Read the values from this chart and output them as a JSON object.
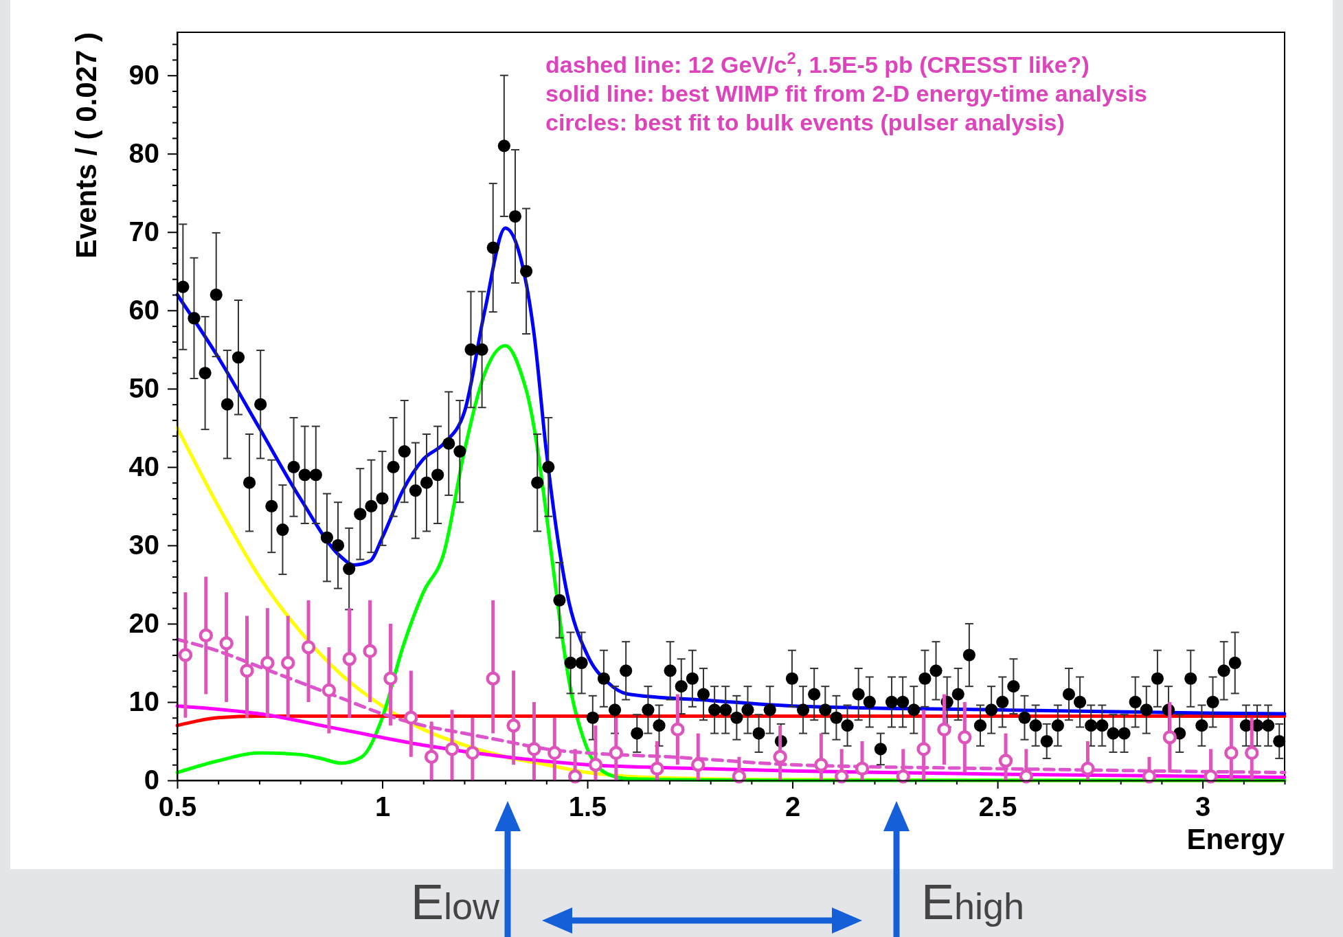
{
  "chart_data": {
    "type": "scatter",
    "ylabel": "Events / ( 0.027 )",
    "xlabel": "Energy",
    "xlim": [
      0.5,
      3.2
    ],
    "ylim": [
      0,
      95.5
    ],
    "xticks": [
      0.5,
      {
        "value": 0.6,
        "label": null
      },
      {
        "value": 0.7,
        "label": null
      },
      {
        "value": 0.8,
        "label": null
      },
      {
        "value": 0.9,
        "label": null
      },
      1,
      {
        "value": 1.1,
        "label": null
      },
      {
        "value": 1.2,
        "label": null
      },
      {
        "value": 1.3,
        "label": null
      },
      {
        "value": 1.4,
        "label": null
      },
      1.5,
      {
        "value": 1.6,
        "label": null
      },
      {
        "value": 1.7,
        "label": null
      },
      {
        "value": 1.8,
        "label": null
      },
      {
        "value": 1.9,
        "label": null
      },
      2,
      {
        "value": 2.1,
        "label": null
      },
      {
        "value": 2.2,
        "label": null
      },
      {
        "value": 2.3,
        "label": null
      },
      {
        "value": 2.4,
        "label": null
      },
      2.5,
      {
        "value": 2.6,
        "label": null
      },
      {
        "value": 2.7,
        "label": null
      },
      {
        "value": 2.8,
        "label": null
      },
      {
        "value": 2.9,
        "label": null
      },
      3,
      {
        "value": 3.1,
        "label": null
      },
      {
        "value": 3.2,
        "label": null
      }
    ],
    "yticks": [
      0,
      {
        "value": 2,
        "label": null
      },
      {
        "value": 4,
        "label": null
      },
      {
        "value": 6,
        "label": null
      },
      {
        "value": 8,
        "label": null
      },
      10,
      {
        "value": 12,
        "label": null
      },
      {
        "value": 14,
        "label": null
      },
      {
        "value": 16,
        "label": null
      },
      {
        "value": 18,
        "label": null
      },
      20,
      {
        "value": 22,
        "label": null
      },
      {
        "value": 24,
        "label": null
      },
      {
        "value": 26,
        "label": null
      },
      {
        "value": 28,
        "label": null
      },
      30,
      {
        "value": 32,
        "label": null
      },
      {
        "value": 34,
        "label": null
      },
      {
        "value": 36,
        "label": null
      },
      {
        "value": 38,
        "label": null
      },
      40,
      {
        "value": 42,
        "label": null
      },
      {
        "value": 44,
        "label": null
      },
      {
        "value": 46,
        "label": null
      },
      {
        "value": 48,
        "label": null
      },
      50,
      {
        "value": 52,
        "label": null
      },
      {
        "value": 54,
        "label": null
      },
      {
        "value": 56,
        "label": null
      },
      {
        "value": 58,
        "label": null
      },
      60,
      {
        "value": 62,
        "label": null
      },
      {
        "value": 64,
        "label": null
      },
      {
        "value": 66,
        "label": null
      },
      {
        "value": 68,
        "label": null
      },
      70,
      {
        "value": 72,
        "label": null
      },
      {
        "value": 74,
        "label": null
      },
      {
        "value": 76,
        "label": null
      },
      {
        "value": 78,
        "label": null
      },
      80,
      {
        "value": 82,
        "label": null
      },
      {
        "value": 84,
        "label": null
      },
      {
        "value": 86,
        "label": null
      },
      {
        "value": 88,
        "label": null
      },
      90,
      {
        "value": 92,
        "label": null
      },
      {
        "value": 94,
        "label": null
      }
    ],
    "grid": false,
    "annotations": [
      "dashed line: 12 GeV/c$^{2}$, 1.5E-5 pb (CRESST like?)",
      "solid line: best WIMP fit from 2-D energy-time analysis",
      "circles: best fit to bulk events (pulser analysis)",
      "E$_{low}$",
      "E$_{high}$"
    ],
    "series": [
      {
        "type": "line",
        "color": "#ffff00",
        "x": [
          0.5,
          0.6,
          0.7,
          0.8,
          0.9,
          1.0,
          1.1,
          1.2,
          1.3,
          1.4,
          1.5,
          1.6,
          1.8,
          2.0,
          2.5,
          3.2
        ],
        "values": [
          45,
          35,
          26,
          19,
          13.5,
          9.5,
          6.5,
          4.5,
          3,
          2,
          1,
          0.5,
          0.2,
          0.1,
          0,
          0
        ]
      },
      {
        "type": "line",
        "color": "#00ff00",
        "x": [
          0.5,
          0.6,
          0.7,
          0.8,
          0.85,
          0.9,
          0.95,
          1.0,
          1.05,
          1.1,
          1.15,
          1.2,
          1.25,
          1.3,
          1.35,
          1.47,
          1.5,
          1.55,
          1.6,
          2.0,
          3.2
        ],
        "values": [
          1,
          2.5,
          3.5,
          3.3,
          2.8,
          2.2,
          3,
          8,
          17,
          24,
          29,
          42,
          52,
          55.5,
          50,
          9,
          4,
          0.8,
          0.2,
          0,
          0
        ]
      },
      {
        "type": "line",
        "color": "#ff0000",
        "x": [
          0.5,
          0.55,
          0.6,
          0.7,
          1.0,
          2.0,
          3.2
        ],
        "values": [
          7,
          7.6,
          8,
          8.2,
          8.2,
          8.2,
          8.2
        ]
      },
      {
        "type": "line",
        "color": "#ff00ff",
        "x": [
          0.5,
          0.7,
          0.9,
          1.1,
          1.3,
          1.5,
          1.7,
          2.0,
          2.5,
          3.2
        ],
        "values": [
          9.5,
          8.5,
          6.5,
          4.5,
          3,
          2,
          1.6,
          1.2,
          0.8,
          0.4
        ]
      },
      {
        "type": "line",
        "color": "#dd55cc",
        "line_style": "dashed",
        "x": [
          0.5,
          0.6,
          0.7,
          0.8,
          0.9,
          1.0,
          1.1,
          1.2,
          1.3,
          1.4,
          1.5,
          1.7,
          2.0,
          2.5,
          3.2
        ],
        "values": [
          18,
          16.5,
          14.5,
          12.5,
          10.5,
          8.5,
          7,
          6,
          5,
          4,
          3.5,
          3,
          2,
          1.5,
          1
        ]
      },
      {
        "type": "line",
        "color": "#0000ff",
        "x": [
          0.5,
          0.6,
          0.7,
          0.8,
          0.9,
          0.93,
          0.97,
          1.0,
          1.05,
          1.1,
          1.15,
          1.2,
          1.25,
          1.3,
          1.33,
          1.37,
          1.4,
          1.45,
          1.5,
          1.55,
          1.6,
          1.8,
          2.0,
          2.5,
          3.0,
          3.2
        ],
        "values": [
          62,
          54,
          45,
          36,
          28.5,
          27.5,
          28,
          31,
          37,
          41,
          43,
          47,
          60,
          70.5,
          68,
          57,
          42,
          24,
          16,
          12.5,
          11,
          10.2,
          9.5,
          9,
          8.6,
          8.5
        ]
      },
      {
        "type": "scatter",
        "color": "#000000",
        "marker": "circle",
        "x": [
          0.514,
          0.541,
          0.568,
          0.595,
          0.622,
          0.649,
          0.676,
          0.703,
          0.73,
          0.757,
          0.784,
          0.811,
          0.838,
          0.865,
          0.892,
          0.919,
          0.946,
          0.973,
          1.0,
          1.027,
          1.054,
          1.081,
          1.108,
          1.135,
          1.162,
          1.189,
          1.216,
          1.243,
          1.27,
          1.297,
          1.324,
          1.351,
          1.378,
          1.405,
          1.432,
          1.459,
          1.486,
          1.513,
          1.54,
          1.567,
          1.594,
          1.621,
          1.648,
          1.675,
          1.702,
          1.729,
          1.756,
          1.783,
          1.81,
          1.837,
          1.864,
          1.891,
          1.918,
          1.945,
          1.972,
          1.999,
          2.026,
          2.053,
          2.08,
          2.107,
          2.134,
          2.161,
          2.188,
          2.215,
          2.242,
          2.269,
          2.296,
          2.323,
          2.35,
          2.377,
          2.404,
          2.431,
          2.458,
          2.485,
          2.512,
          2.539,
          2.566,
          2.593,
          2.62,
          2.647,
          2.674,
          2.701,
          2.728,
          2.755,
          2.782,
          2.809,
          2.836,
          2.863,
          2.89,
          2.917,
          2.944,
          2.971,
          2.998,
          3.025,
          3.052,
          3.079,
          3.106,
          3.133,
          3.16,
          3.187
        ],
        "values": [
          63,
          59,
          52,
          62,
          48,
          54,
          38,
          48,
          35,
          32,
          40,
          39,
          39,
          31,
          30,
          27,
          34,
          35,
          36,
          40,
          42,
          37,
          38,
          39,
          43,
          42,
          55,
          55,
          68,
          81,
          72,
          65,
          38,
          40,
          23,
          15,
          15,
          8,
          13,
          9,
          14,
          6,
          9,
          7,
          14,
          12,
          13,
          11,
          9,
          9,
          8,
          9,
          6,
          9,
          5,
          13,
          9,
          11,
          9,
          8,
          7,
          11,
          10,
          4,
          10,
          10,
          9,
          13,
          14,
          10,
          11,
          16,
          7,
          9,
          10,
          12,
          8,
          7,
          5,
          7,
          11,
          10,
          7,
          7,
          6,
          6,
          10,
          9,
          13,
          9,
          6,
          13,
          7,
          10,
          14,
          15,
          7,
          7,
          7,
          5
        ],
        "errors": [
          8,
          7.7,
          7.2,
          7.9,
          6.9,
          7.3,
          6.2,
          6.9,
          5.9,
          5.7,
          6.3,
          6.2,
          6.2,
          5.6,
          5.5,
          5.2,
          5.8,
          5.9,
          6,
          6.3,
          6.5,
          6.1,
          6.2,
          6.2,
          6.6,
          6.5,
          7.4,
          7.4,
          8.2,
          9,
          8.5,
          8,
          6.2,
          6.3,
          4.8,
          3.9,
          3.9,
          2.8,
          3.6,
          3,
          3.7,
          2.4,
          3,
          2.6,
          3.7,
          3.5,
          3.6,
          3.3,
          3,
          3,
          2.8,
          3,
          2.4,
          3,
          2.2,
          3.6,
          3,
          3.3,
          3,
          2.8,
          2.6,
          3.3,
          3.2,
          2,
          3.2,
          3.2,
          3,
          3.6,
          3.7,
          3.2,
          3.3,
          4,
          2.6,
          3,
          3.2,
          3.5,
          2.8,
          2.6,
          2.2,
          2.6,
          3.3,
          3.2,
          2.6,
          2.6,
          2.4,
          2.4,
          3.2,
          3,
          3.6,
          3,
          2.4,
          3.6,
          2.6,
          3.2,
          3.7,
          3.9,
          2.6,
          2.6,
          2.6,
          2.2
        ]
      },
      {
        "type": "scatter",
        "color": "#dd55bb",
        "marker": "circle",
        "x": [
          0.52,
          0.57,
          0.62,
          0.67,
          0.72,
          0.77,
          0.82,
          0.87,
          0.92,
          0.97,
          1.02,
          1.07,
          1.12,
          1.17,
          1.22,
          1.27,
          1.32,
          1.37,
          1.42,
          1.47,
          1.52,
          1.57,
          1.67,
          1.72,
          1.77,
          1.87,
          1.97,
          2.07,
          2.12,
          2.17,
          2.27,
          2.32,
          2.37,
          2.42,
          2.52,
          2.57,
          2.72,
          2.87,
          2.92,
          3.02,
          3.07,
          3.12
        ],
        "values": [
          16,
          18.5,
          17.5,
          14,
          15,
          15,
          17,
          11.5,
          15.5,
          16.5,
          13,
          8,
          3,
          4,
          3.5,
          13,
          7,
          4,
          3.5,
          0.5,
          2,
          3.5,
          1.5,
          6.5,
          2,
          0.5,
          3,
          2,
          0.5,
          1.5,
          0.5,
          4,
          6.5,
          5.5,
          2.5,
          0.5,
          1.5,
          0.5,
          5.5,
          0.5,
          3.5,
          3.5
        ],
        "errors": [
          [
            8,
            24
          ],
          [
            11,
            26
          ],
          [
            10,
            24
          ],
          [
            8,
            21
          ],
          [
            8,
            22
          ],
          [
            8,
            21
          ],
          [
            10,
            23
          ],
          [
            6,
            17
          ],
          [
            8,
            22
          ],
          [
            10,
            23
          ],
          [
            7,
            20
          ],
          [
            3,
            14
          ],
          [
            0,
            7.5
          ],
          [
            0,
            9
          ],
          [
            0,
            8
          ],
          [
            6,
            23
          ],
          [
            2,
            14
          ],
          [
            0,
            10
          ],
          [
            0,
            8
          ],
          [
            0,
            4
          ],
          [
            0,
            7
          ],
          [
            0,
            8
          ],
          [
            0,
            5
          ],
          [
            2,
            11
          ],
          [
            0,
            6
          ],
          [
            0,
            3
          ],
          [
            0,
            7
          ],
          [
            0,
            6
          ],
          [
            0,
            4
          ],
          [
            0,
            5
          ],
          [
            0,
            4
          ],
          [
            0,
            9
          ],
          [
            2,
            11
          ],
          [
            1,
            10
          ],
          [
            0,
            6
          ],
          [
            0,
            4
          ],
          [
            0,
            5
          ],
          [
            0,
            3
          ],
          [
            1,
            10
          ],
          [
            0,
            4
          ],
          [
            0,
            8
          ],
          [
            0,
            8
          ]
        ]
      }
    ]
  }
}
